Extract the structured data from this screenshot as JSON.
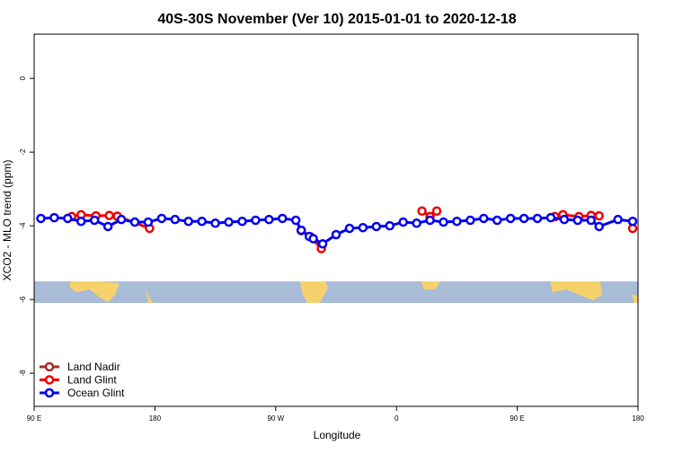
{
  "chart_data": {
    "type": "line",
    "title": "40S-30S November (Ver 10)   2015-01-01 to 2020-12-18",
    "x_label": "Longitude",
    "y_label": "XCO2 - MLO trend (ppm)",
    "xlim": [
      90,
      540
    ],
    "ylim": [
      -8.9,
      1.2
    ],
    "xticks": [
      {
        "value": 90,
        "label": "90 E"
      },
      {
        "value": 180,
        "label": "180"
      },
      {
        "value": 270,
        "label": "90 W"
      },
      {
        "value": 360,
        "label": "0"
      },
      {
        "value": 450,
        "label": "90 E"
      },
      {
        "value": 540,
        "label": "180"
      }
    ],
    "yticks": [
      0,
      -2,
      -4,
      -6,
      -8
    ],
    "legend": "bottom-left",
    "series": [
      {
        "name": "Land Nadir",
        "color": "#a52a2a",
        "x": [],
        "values": []
      },
      {
        "name": "Land Glint",
        "color": "#ee0000",
        "x": [
          118,
          125,
          136,
          146,
          152,
          176,
          230,
          289,
          296,
          304,
          340,
          379,
          385,
          390,
          430,
          478,
          484,
          496,
          505,
          511,
          520,
          536
        ],
        "values": [
          -3.75,
          -3.7,
          -3.73,
          -3.72,
          -3.74,
          -4.07,
          null,
          -4.13,
          -4.3,
          -4.62,
          null,
          -3.6,
          -3.75,
          -3.6,
          null,
          -3.75,
          -3.7,
          -3.75,
          -3.72,
          -3.73,
          null,
          -4.07
        ]
      },
      {
        "name": "Ocean Glint",
        "color": "#0000ee",
        "x": [
          95,
          105,
          115,
          125,
          135,
          145,
          155,
          165,
          175,
          185,
          195,
          205,
          215,
          225,
          235,
          245,
          255,
          265,
          275,
          285,
          289,
          295,
          298,
          305,
          315,
          325,
          335,
          345,
          355,
          365,
          375,
          385,
          395,
          405,
          415,
          425,
          435,
          445,
          455,
          465,
          475,
          485,
          495,
          505,
          511,
          525,
          536
        ],
        "values": [
          -3.8,
          -3.78,
          -3.8,
          -3.88,
          -3.85,
          -4.02,
          -3.83,
          -3.9,
          -3.9,
          -3.8,
          -3.83,
          -3.88,
          -3.88,
          -3.93,
          -3.9,
          -3.88,
          -3.85,
          -3.83,
          -3.8,
          -3.85,
          -4.12,
          -4.29,
          -4.35,
          -4.49,
          -4.24,
          -4.07,
          -4.05,
          -4.02,
          -4.0,
          -3.9,
          -3.93,
          -3.85,
          -3.9,
          -3.88,
          -3.85,
          -3.8,
          -3.85,
          -3.8,
          -3.8,
          -3.8,
          -3.78,
          -3.83,
          -3.85,
          -3.85,
          -4.02,
          -3.83,
          -3.88
        ]
      }
    ]
  }
}
